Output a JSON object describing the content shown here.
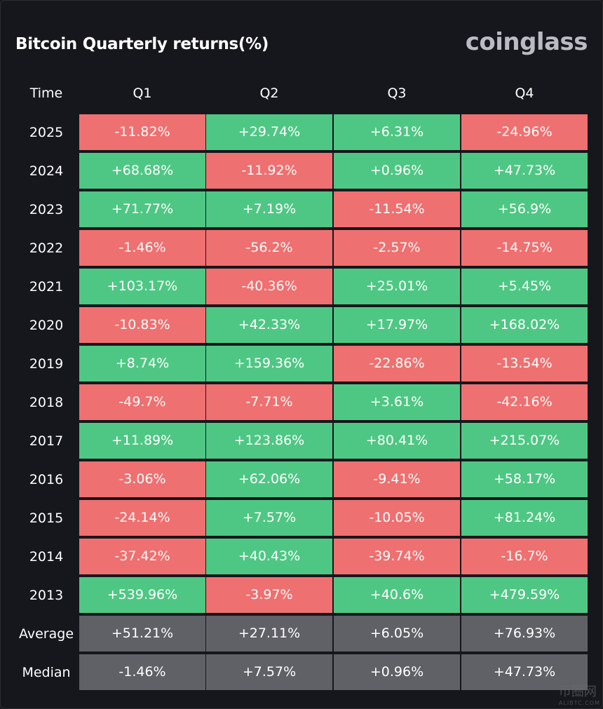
{
  "title": "Bitcoin Quarterly returns(%)",
  "brand": "coinglass",
  "watermark": {
    "text": "币圈网",
    "sub": "ALIBTC.COM"
  },
  "colors": {
    "positive": "#4fc784",
    "negative": "#ef7070",
    "summary": "#606166",
    "background": "#16171d"
  },
  "chart_data": {
    "type": "table",
    "title": "Bitcoin Quarterly returns(%)",
    "columns": [
      "Time",
      "Q1",
      "Q2",
      "Q3",
      "Q4"
    ],
    "rows": [
      {
        "label": "2025",
        "values": [
          "-11.82%",
          "+29.74%",
          "+6.31%",
          "-24.96%"
        ]
      },
      {
        "label": "2024",
        "values": [
          "+68.68%",
          "-11.92%",
          "+0.96%",
          "+47.73%"
        ]
      },
      {
        "label": "2023",
        "values": [
          "+71.77%",
          "+7.19%",
          "-11.54%",
          "+56.9%"
        ]
      },
      {
        "label": "2022",
        "values": [
          "-1.46%",
          "-56.2%",
          "-2.57%",
          "-14.75%"
        ]
      },
      {
        "label": "2021",
        "values": [
          "+103.17%",
          "-40.36%",
          "+25.01%",
          "+5.45%"
        ]
      },
      {
        "label": "2020",
        "values": [
          "-10.83%",
          "+42.33%",
          "+17.97%",
          "+168.02%"
        ]
      },
      {
        "label": "2019",
        "values": [
          "+8.74%",
          "+159.36%",
          "-22.86%",
          "-13.54%"
        ]
      },
      {
        "label": "2018",
        "values": [
          "-49.7%",
          "-7.71%",
          "+3.61%",
          "-42.16%"
        ]
      },
      {
        "label": "2017",
        "values": [
          "+11.89%",
          "+123.86%",
          "+80.41%",
          "+215.07%"
        ]
      },
      {
        "label": "2016",
        "values": [
          "-3.06%",
          "+62.06%",
          "-9.41%",
          "+58.17%"
        ]
      },
      {
        "label": "2015",
        "values": [
          "-24.14%",
          "+7.57%",
          "-10.05%",
          "+81.24%"
        ]
      },
      {
        "label": "2014",
        "values": [
          "-37.42%",
          "+40.43%",
          "-39.74%",
          "-16.7%"
        ]
      },
      {
        "label": "2013",
        "values": [
          "+539.96%",
          "-3.97%",
          "+40.6%",
          "+479.59%"
        ]
      }
    ],
    "summary_rows": [
      {
        "label": "Average",
        "values": [
          "+51.21%",
          "+27.11%",
          "+6.05%",
          "+76.93%"
        ]
      },
      {
        "label": "Median",
        "values": [
          "-1.46%",
          "+7.57%",
          "+0.96%",
          "+47.73%"
        ]
      }
    ]
  }
}
